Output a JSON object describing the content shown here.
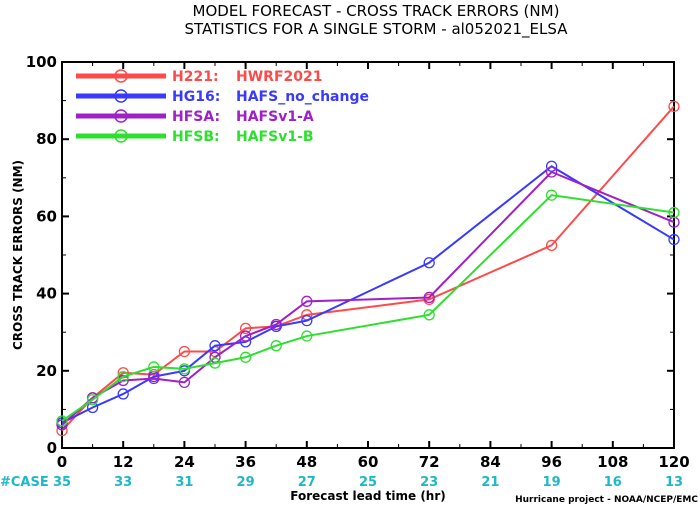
{
  "chart_data": {
    "type": "line",
    "title": "MODEL FORECAST - CROSS TRACK ERRORS (NM)",
    "subtitle": "STATISTICS FOR A SINGLE STORM - al052021_ELSA",
    "xlabel": "Forecast lead time (hr)",
    "ylabel": "CROSS TRACK ERRORS (NM)",
    "xlim": [
      0,
      120
    ],
    "ylim": [
      0,
      100
    ],
    "x_ticks": [
      0,
      12,
      24,
      36,
      48,
      60,
      72,
      84,
      96,
      108,
      120
    ],
    "y_ticks": [
      0,
      20,
      40,
      60,
      80,
      100
    ],
    "legend_position": "top-left",
    "series": [
      {
        "name": "H221:",
        "label": "HWRF2021",
        "color": "#ff4a4a",
        "x": [
          0,
          6,
          12,
          18,
          24,
          30,
          36,
          42,
          48,
          72,
          96,
          120
        ],
        "y": [
          4.5,
          13,
          19.5,
          19,
          25,
          25,
          31,
          31.5,
          34.5,
          38.5,
          52.5,
          88.5
        ]
      },
      {
        "name": "HG16:",
        "label": "HAFS_no_change",
        "color": "#3a3aff",
        "x": [
          0,
          6,
          12,
          18,
          24,
          30,
          36,
          42,
          48,
          72,
          96,
          120
        ],
        "y": [
          6.5,
          10.5,
          14,
          18.5,
          20,
          26.5,
          27.5,
          31.5,
          33,
          48,
          73,
          54
        ]
      },
      {
        "name": "HFSA:",
        "label": "HAFSv1-A",
        "color": "#a020c8",
        "x": [
          0,
          6,
          12,
          18,
          24,
          30,
          36,
          42,
          48,
          72,
          96,
          120
        ],
        "y": [
          6,
          13,
          17.5,
          18,
          17,
          23.5,
          29,
          32,
          38,
          39,
          71.5,
          58.5
        ]
      },
      {
        "name": "HFSB:",
        "label": "HAFSv1-B",
        "color": "#2ee02e",
        "x": [
          0,
          6,
          12,
          18,
          24,
          30,
          36,
          42,
          48,
          72,
          96,
          120
        ],
        "y": [
          7,
          12.5,
          18.5,
          21,
          20.5,
          22,
          23.5,
          26.5,
          29,
          34.5,
          65.5,
          61
        ]
      }
    ],
    "cases": {
      "label": "#CASE",
      "color": "#1fb8c8",
      "x": [
        0,
        12,
        24,
        36,
        48,
        60,
        72,
        84,
        96,
        108,
        120
      ],
      "values": [
        "35",
        "33",
        "31",
        "29",
        "27",
        "25",
        "23",
        "21",
        "19",
        "16",
        "13"
      ]
    },
    "credit": "Hurricane project - NOAA/NCEP/EMC"
  }
}
